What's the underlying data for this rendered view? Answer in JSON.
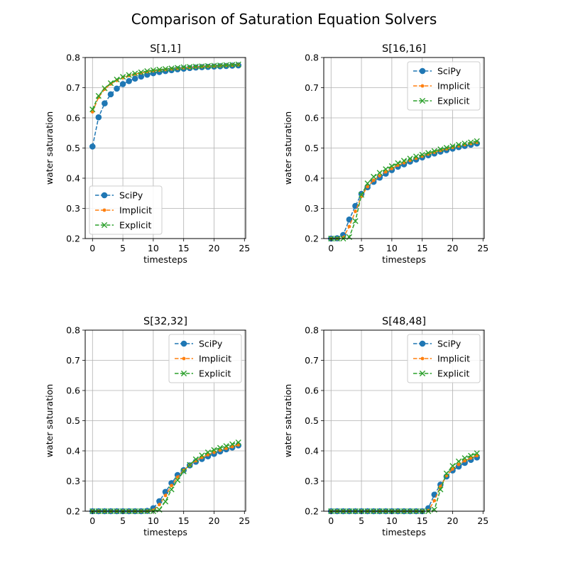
{
  "figure_title": "Comparison of Saturation Equation Solvers",
  "chart_data": [
    {
      "type": "line",
      "title": "S[1,1]",
      "xlabel": "timesteps",
      "ylabel": "water saturation",
      "xlim": [
        -1.2,
        25.2
      ],
      "ylim": [
        0.2,
        0.8
      ],
      "xticks": [
        0,
        5,
        10,
        15,
        20,
        25
      ],
      "yticks": [
        0.2,
        0.3,
        0.4,
        0.5,
        0.6,
        0.7,
        0.8
      ],
      "grid": true,
      "legend": "lower-left",
      "x": [
        0,
        1,
        2,
        3,
        4,
        5,
        6,
        7,
        8,
        9,
        10,
        11,
        12,
        13,
        14,
        15,
        16,
        17,
        18,
        19,
        20,
        21,
        22,
        23,
        24
      ],
      "series": [
        {
          "name": "SciPy",
          "color": "#1f77b4",
          "marker": "circle",
          "values": [
            0.505,
            0.602,
            0.648,
            0.678,
            0.697,
            0.712,
            0.722,
            0.73,
            0.737,
            0.743,
            0.748,
            0.752,
            0.755,
            0.758,
            0.761,
            0.763,
            0.765,
            0.767,
            0.768,
            0.769,
            0.77,
            0.771,
            0.772,
            0.773,
            0.774
          ]
        },
        {
          "name": "Implicit",
          "color": "#ff7f0e",
          "marker": "point",
          "values": [
            0.62,
            0.668,
            0.695,
            0.712,
            0.724,
            0.733,
            0.74,
            0.745,
            0.749,
            0.753,
            0.756,
            0.758,
            0.76,
            0.762,
            0.764,
            0.766,
            0.767,
            0.769,
            0.77,
            0.771,
            0.772,
            0.773,
            0.774,
            0.775,
            0.776
          ]
        },
        {
          "name": "Explicit",
          "color": "#2ca02c",
          "marker": "x",
          "values": [
            0.628,
            0.673,
            0.698,
            0.715,
            0.727,
            0.736,
            0.742,
            0.747,
            0.751,
            0.755,
            0.758,
            0.76,
            0.762,
            0.764,
            0.766,
            0.768,
            0.769,
            0.77,
            0.771,
            0.772,
            0.773,
            0.774,
            0.775,
            0.776,
            0.777
          ]
        }
      ]
    },
    {
      "type": "line",
      "title": "S[16,16]",
      "xlabel": "timesteps",
      "ylabel": "water saturation",
      "xlim": [
        -1.2,
        25.2
      ],
      "ylim": [
        0.2,
        0.8
      ],
      "xticks": [
        0,
        5,
        10,
        15,
        20,
        25
      ],
      "yticks": [
        0.2,
        0.3,
        0.4,
        0.5,
        0.6,
        0.7,
        0.8
      ],
      "grid": true,
      "legend": "upper-right",
      "x": [
        0,
        1,
        2,
        3,
        4,
        5,
        6,
        7,
        8,
        9,
        10,
        11,
        12,
        13,
        14,
        15,
        16,
        17,
        18,
        19,
        20,
        21,
        22,
        23,
        24
      ],
      "series": [
        {
          "name": "SciPy",
          "color": "#1f77b4",
          "marker": "circle",
          "values": [
            0.2,
            0.201,
            0.212,
            0.263,
            0.308,
            0.348,
            0.37,
            0.388,
            0.402,
            0.415,
            0.427,
            0.438,
            0.446,
            0.455,
            0.462,
            0.469,
            0.476,
            0.482,
            0.488,
            0.493,
            0.498,
            0.503,
            0.507,
            0.511,
            0.515
          ]
        },
        {
          "name": "Implicit",
          "color": "#ff7f0e",
          "marker": "point",
          "values": [
            0.2,
            0.2,
            0.203,
            0.24,
            0.29,
            0.34,
            0.372,
            0.393,
            0.408,
            0.421,
            0.432,
            0.443,
            0.451,
            0.459,
            0.466,
            0.473,
            0.48,
            0.486,
            0.492,
            0.497,
            0.502,
            0.507,
            0.511,
            0.515,
            0.519
          ]
        },
        {
          "name": "Explicit",
          "color": "#2ca02c",
          "marker": "x",
          "values": [
            0.2,
            0.2,
            0.2,
            0.205,
            0.258,
            0.345,
            0.383,
            0.405,
            0.418,
            0.43,
            0.44,
            0.45,
            0.458,
            0.465,
            0.472,
            0.478,
            0.484,
            0.49,
            0.496,
            0.501,
            0.506,
            0.511,
            0.515,
            0.519,
            0.523
          ]
        }
      ]
    },
    {
      "type": "line",
      "title": "S[32,32]",
      "xlabel": "timesteps",
      "ylabel": "water saturation",
      "xlim": [
        -1.2,
        25.2
      ],
      "ylim": [
        0.2,
        0.8
      ],
      "xticks": [
        0,
        5,
        10,
        15,
        20,
        25
      ],
      "yticks": [
        0.2,
        0.3,
        0.4,
        0.5,
        0.6,
        0.7,
        0.8
      ],
      "grid": true,
      "legend": "upper-right",
      "x": [
        0,
        1,
        2,
        3,
        4,
        5,
        6,
        7,
        8,
        9,
        10,
        11,
        12,
        13,
        14,
        15,
        16,
        17,
        18,
        19,
        20,
        21,
        22,
        23,
        24
      ],
      "series": [
        {
          "name": "SciPy",
          "color": "#1f77b4",
          "marker": "circle",
          "values": [
            0.2,
            0.2,
            0.2,
            0.2,
            0.2,
            0.2,
            0.2,
            0.2,
            0.2,
            0.201,
            0.21,
            0.233,
            0.264,
            0.293,
            0.32,
            0.336,
            0.352,
            0.364,
            0.373,
            0.382,
            0.39,
            0.398,
            0.405,
            0.411,
            0.418
          ]
        },
        {
          "name": "Implicit",
          "color": "#ff7f0e",
          "marker": "point",
          "values": [
            0.2,
            0.2,
            0.2,
            0.2,
            0.2,
            0.2,
            0.2,
            0.2,
            0.2,
            0.2,
            0.203,
            0.222,
            0.252,
            0.285,
            0.313,
            0.335,
            0.353,
            0.367,
            0.378,
            0.387,
            0.395,
            0.402,
            0.408,
            0.414,
            0.42
          ]
        },
        {
          "name": "Explicit",
          "color": "#2ca02c",
          "marker": "x",
          "values": [
            0.2,
            0.2,
            0.2,
            0.2,
            0.2,
            0.2,
            0.2,
            0.2,
            0.2,
            0.2,
            0.2,
            0.205,
            0.232,
            0.272,
            0.303,
            0.332,
            0.354,
            0.372,
            0.385,
            0.395,
            0.403,
            0.41,
            0.416,
            0.422,
            0.428
          ]
        }
      ]
    },
    {
      "type": "line",
      "title": "S[48,48]",
      "xlabel": "timesteps",
      "ylabel": "water saturation",
      "xlim": [
        -1.2,
        25.2
      ],
      "ylim": [
        0.2,
        0.8
      ],
      "xticks": [
        0,
        5,
        10,
        15,
        20,
        25
      ],
      "yticks": [
        0.2,
        0.3,
        0.4,
        0.5,
        0.6,
        0.7,
        0.8
      ],
      "grid": true,
      "legend": "upper-right",
      "x": [
        0,
        1,
        2,
        3,
        4,
        5,
        6,
        7,
        8,
        9,
        10,
        11,
        12,
        13,
        14,
        15,
        16,
        17,
        18,
        19,
        20,
        21,
        22,
        23,
        24
      ],
      "series": [
        {
          "name": "SciPy",
          "color": "#1f77b4",
          "marker": "circle",
          "values": [
            0.2,
            0.2,
            0.2,
            0.2,
            0.2,
            0.2,
            0.2,
            0.2,
            0.2,
            0.2,
            0.2,
            0.2,
            0.2,
            0.2,
            0.2,
            0.2,
            0.21,
            0.255,
            0.288,
            0.315,
            0.335,
            0.348,
            0.36,
            0.37,
            0.378
          ]
        },
        {
          "name": "Implicit",
          "color": "#ff7f0e",
          "marker": "point",
          "values": [
            0.2,
            0.2,
            0.2,
            0.2,
            0.2,
            0.2,
            0.2,
            0.2,
            0.2,
            0.2,
            0.2,
            0.2,
            0.2,
            0.2,
            0.2,
            0.2,
            0.202,
            0.235,
            0.282,
            0.318,
            0.34,
            0.355,
            0.367,
            0.376,
            0.384
          ]
        },
        {
          "name": "Explicit",
          "color": "#2ca02c",
          "marker": "x",
          "values": [
            0.2,
            0.2,
            0.2,
            0.2,
            0.2,
            0.2,
            0.2,
            0.2,
            0.2,
            0.2,
            0.2,
            0.2,
            0.2,
            0.2,
            0.2,
            0.2,
            0.2,
            0.205,
            0.272,
            0.325,
            0.35,
            0.365,
            0.376,
            0.384,
            0.392
          ]
        }
      ]
    }
  ]
}
